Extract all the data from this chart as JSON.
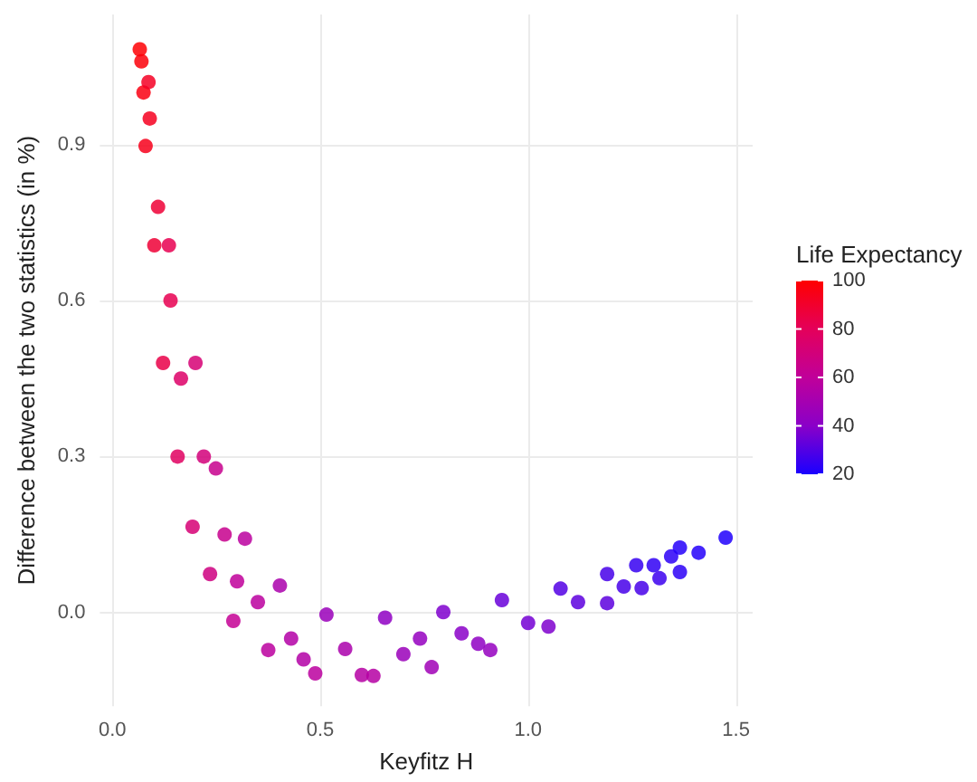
{
  "chart_data": {
    "type": "scatter",
    "xlabel": "Keyfitz H",
    "ylabel": "Difference between the two statistics (in %)",
    "clabel": "Life Expectancy",
    "clim": [
      20,
      100
    ],
    "cticks": [
      20,
      40,
      60,
      80,
      100
    ],
    "xlim": [
      -0.03,
      1.54
    ],
    "ylim": [
      -0.18,
      1.15
    ],
    "xticks": [
      {
        "value": 0,
        "label": "0.0"
      },
      0.5,
      {
        "value": 1,
        "label": "1.0"
      },
      1.5
    ],
    "yticks": [
      {
        "value": 0,
        "label": "0.0"
      },
      0.3,
      0.6,
      0.9
    ],
    "grid": true,
    "marker": "circle",
    "x": [
      0.066,
      0.07,
      0.075,
      0.08,
      0.087,
      0.09,
      0.101,
      0.11,
      0.122,
      0.136,
      0.14,
      0.157,
      0.165,
      0.193,
      0.2,
      0.22,
      0.235,
      0.249,
      0.27,
      0.291,
      0.3,
      0.319,
      0.35,
      0.375,
      0.403,
      0.43,
      0.46,
      0.488,
      0.515,
      0.56,
      0.6,
      0.628,
      0.656,
      0.7,
      0.74,
      0.768,
      0.796,
      0.84,
      0.88,
      0.909,
      0.937,
      1.0,
      1.049,
      1.078,
      1.12,
      1.19,
      1.19,
      1.23,
      1.26,
      1.273,
      1.302,
      1.316,
      1.344,
      1.365,
      1.365,
      1.41,
      1.475
    ],
    "values": [
      1.083,
      1.06,
      1.0,
      0.897,
      1.02,
      0.95,
      0.706,
      0.78,
      0.48,
      0.706,
      0.6,
      0.3,
      0.45,
      0.165,
      0.48,
      0.3,
      0.074,
      0.277,
      0.15,
      -0.016,
      0.06,
      0.142,
      0.02,
      -0.072,
      0.052,
      -0.05,
      -0.09,
      -0.117,
      -0.004,
      -0.07,
      -0.12,
      -0.122,
      -0.01,
      -0.08,
      -0.05,
      -0.105,
      0.001,
      -0.04,
      -0.06,
      -0.072,
      0.024,
      -0.02,
      -0.027,
      0.046,
      0.02,
      0.018,
      0.074,
      0.05,
      0.091,
      0.047,
      0.091,
      0.066,
      0.108,
      0.125,
      0.078,
      0.115,
      0.144
    ],
    "cvalues": [
      99,
      98,
      96,
      94,
      92,
      93,
      88,
      88,
      84,
      82,
      82,
      78,
      76,
      72,
      72,
      70,
      68,
      64,
      64,
      62,
      60,
      58,
      58,
      58,
      52,
      55,
      55,
      58,
      46,
      52,
      56,
      56,
      42,
      46,
      44,
      48,
      38,
      40,
      42,
      44,
      34,
      36,
      38,
      30,
      32,
      32,
      28,
      28,
      25,
      28,
      24,
      26,
      23,
      22,
      23,
      22,
      21
    ]
  }
}
